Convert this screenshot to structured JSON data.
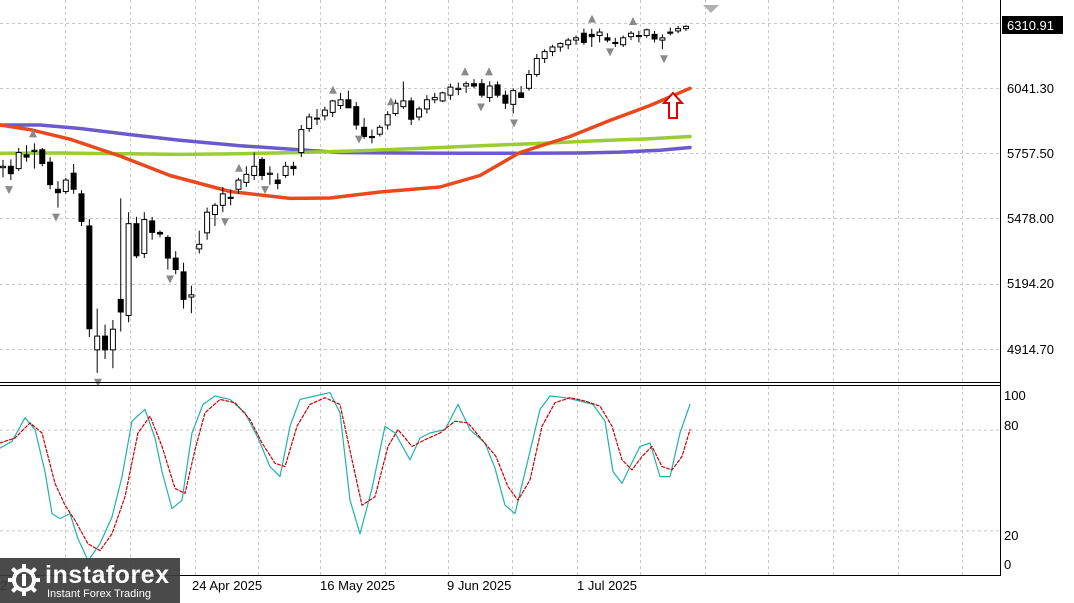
{
  "chart_data": [
    {
      "type": "candlestick",
      "price_axis": {
        "ticks": [
          "6041.30",
          "5757.50",
          "5478.00",
          "5194.20",
          "4914.70"
        ],
        "tick_values": [
          6041.3,
          5757.5,
          5478.0,
          5194.2,
          4914.7
        ],
        "ylim": [
          4770,
          6400
        ],
        "current_price": "6310.91"
      },
      "candles": [
        [
          5694,
          5728,
          5652,
          5700
        ],
        [
          5700,
          5730,
          5640,
          5668
        ],
        [
          5690,
          5780,
          5680,
          5760
        ],
        [
          5750,
          5792,
          5720,
          5740
        ],
        [
          5765,
          5800,
          5690,
          5770
        ],
        [
          5772,
          5780,
          5700,
          5712
        ],
        [
          5718,
          5740,
          5600,
          5620
        ],
        [
          5600,
          5635,
          5520,
          5585
        ],
        [
          5590,
          5650,
          5580,
          5640
        ],
        [
          5670,
          5710,
          5580,
          5600
        ],
        [
          5580,
          5596,
          5440,
          5460
        ],
        [
          5440,
          5470,
          4956,
          4992
        ],
        [
          4900,
          5080,
          4800,
          4960
        ],
        [
          4960,
          5010,
          4860,
          4900
        ],
        [
          4900,
          5030,
          4820,
          4990
        ],
        [
          5120,
          5560,
          4980,
          5065
        ],
        [
          5050,
          5500,
          5020,
          5450
        ],
        [
          5450,
          5480,
          5300,
          5310
        ],
        [
          5320,
          5500,
          5300,
          5468
        ],
        [
          5462,
          5480,
          5380,
          5412
        ],
        [
          5412,
          5420,
          5390,
          5405
        ],
        [
          5390,
          5400,
          5250,
          5300
        ],
        [
          5300,
          5330,
          5230,
          5250
        ],
        [
          5240,
          5280,
          5080,
          5120
        ],
        [
          5130,
          5180,
          5060,
          5140
        ],
        [
          5340,
          5420,
          5320,
          5360
        ],
        [
          5410,
          5520,
          5380,
          5500
        ],
        [
          5490,
          5540,
          5440,
          5530
        ],
        [
          5530,
          5610,
          5500,
          5580
        ],
        [
          5565,
          5600,
          5530,
          5560
        ],
        [
          5600,
          5650,
          5580,
          5640
        ],
        [
          5630,
          5700,
          5610,
          5665
        ],
        [
          5660,
          5760,
          5640,
          5700
        ],
        [
          5730,
          5740,
          5640,
          5660
        ],
        [
          5665,
          5700,
          5620,
          5670
        ],
        [
          5640,
          5670,
          5600,
          5625
        ],
        [
          5660,
          5720,
          5650,
          5700
        ],
        [
          5700,
          5720,
          5660,
          5690
        ],
        [
          5760,
          5880,
          5740,
          5860
        ],
        [
          5865,
          5930,
          5850,
          5915
        ],
        [
          5910,
          5950,
          5880,
          5908
        ],
        [
          5920,
          5960,
          5900,
          5945
        ],
        [
          5935,
          5990,
          5915,
          5985
        ],
        [
          5965,
          6020,
          5950,
          5990
        ],
        [
          5990,
          6030,
          5960,
          5955
        ],
        [
          5960,
          5980,
          5860,
          5880
        ],
        [
          5870,
          5910,
          5820,
          5830
        ],
        [
          5830,
          5860,
          5800,
          5825
        ],
        [
          5840,
          5880,
          5830,
          5870
        ],
        [
          5880,
          5940,
          5860,
          5925
        ],
        [
          5930,
          5990,
          5920,
          5975
        ],
        [
          5960,
          6070,
          5950,
          5985
        ],
        [
          5985,
          6000,
          5880,
          5905
        ],
        [
          5915,
          5960,
          5900,
          5950
        ],
        [
          5950,
          6010,
          5930,
          5990
        ],
        [
          5990,
          6020,
          5975,
          6000
        ],
        [
          5985,
          6025,
          5980,
          6020
        ],
        [
          6010,
          6060,
          5990,
          6045
        ],
        [
          6035,
          6065,
          6010,
          6040
        ],
        [
          6050,
          6070,
          6020,
          6060
        ],
        [
          6060,
          6080,
          6040,
          6050
        ],
        [
          6060,
          6080,
          6000,
          6010
        ],
        [
          6000,
          6070,
          5980,
          6050
        ],
        [
          6055,
          6070,
          6000,
          6010
        ],
        [
          6010,
          6030,
          5950,
          5975
        ],
        [
          5970,
          6040,
          5930,
          6030
        ],
        [
          6020,
          6050,
          6000,
          6000
        ],
        [
          6040,
          6120,
          6030,
          6100
        ],
        [
          6100,
          6190,
          6090,
          6170
        ],
        [
          6170,
          6210,
          6150,
          6200
        ],
        [
          6200,
          6230,
          6180,
          6220
        ],
        [
          6220,
          6240,
          6200,
          6235
        ],
        [
          6230,
          6260,
          6210,
          6250
        ],
        [
          6250,
          6270,
          6230,
          6260
        ],
        [
          6280,
          6300,
          6230,
          6240
        ],
        [
          6275,
          6300,
          6220,
          6265
        ],
        [
          6270,
          6300,
          6240,
          6285
        ],
        [
          6260,
          6280,
          6240,
          6250
        ],
        [
          6240,
          6260,
          6220,
          6235
        ],
        [
          6230,
          6270,
          6220,
          6260
        ],
        [
          6265,
          6290,
          6250,
          6280
        ],
        [
          6270,
          6290,
          6240,
          6268
        ],
        [
          6270,
          6300,
          6260,
          6295
        ],
        [
          6275,
          6290,
          6240,
          6255
        ],
        [
          6250,
          6275,
          6210,
          6260
        ],
        [
          6285,
          6305,
          6270,
          6280
        ],
        [
          6290,
          6312,
          6280,
          6300
        ],
        [
          6300,
          6315,
          6290,
          6310
        ]
      ],
      "fractals_up": [
        33,
        239,
        333,
        391,
        465,
        489,
        592,
        633
      ],
      "fractals_down": [
        9,
        56,
        98,
        170,
        225,
        265,
        359,
        481,
        514,
        610,
        664
      ],
      "ma_red": [
        [
          0,
          5880
        ],
        [
          30,
          5860
        ],
        [
          70,
          5818
        ],
        [
          120,
          5745
        ],
        [
          170,
          5660
        ],
        [
          230,
          5590
        ],
        [
          290,
          5560
        ],
        [
          330,
          5562
        ],
        [
          380,
          5588
        ],
        [
          440,
          5610
        ],
        [
          480,
          5660
        ],
        [
          520,
          5760
        ],
        [
          570,
          5830
        ],
        [
          610,
          5900
        ],
        [
          650,
          5965
        ],
        [
          690,
          6040
        ]
      ],
      "ma_blue": [
        [
          0,
          5880
        ],
        [
          40,
          5880
        ],
        [
          80,
          5865
        ],
        [
          130,
          5838
        ],
        [
          180,
          5814
        ],
        [
          240,
          5790
        ],
        [
          290,
          5775
        ],
        [
          340,
          5760
        ],
        [
          400,
          5758
        ],
        [
          460,
          5757
        ],
        [
          520,
          5757
        ],
        [
          580,
          5758
        ],
        [
          620,
          5762
        ],
        [
          660,
          5770
        ],
        [
          690,
          5782
        ]
      ],
      "ma_green": [
        [
          0,
          5757
        ],
        [
          60,
          5758
        ],
        [
          120,
          5755
        ],
        [
          180,
          5752
        ],
        [
          240,
          5755
        ],
        [
          300,
          5760
        ],
        [
          360,
          5768
        ],
        [
          420,
          5778
        ],
        [
          480,
          5790
        ],
        [
          540,
          5800
        ],
        [
          600,
          5812
        ],
        [
          650,
          5820
        ],
        [
          690,
          5830
        ]
      ],
      "signal_arrow": "up"
    },
    {
      "type": "line",
      "indicator": "stochastic",
      "yticks": [
        "100",
        "80",
        "20",
        "0"
      ],
      "ytick_values": [
        100,
        80,
        20,
        0
      ],
      "ylim": [
        0,
        100
      ],
      "main_line": [
        [
          0,
          69
        ],
        [
          12,
          73
        ],
        [
          25,
          87
        ],
        [
          35,
          80
        ],
        [
          45,
          55
        ],
        [
          52,
          30
        ],
        [
          60,
          27
        ],
        [
          70,
          30
        ],
        [
          78,
          15
        ],
        [
          88,
          2
        ],
        [
          100,
          12
        ],
        [
          112,
          28
        ],
        [
          122,
          52
        ],
        [
          132,
          85
        ],
        [
          145,
          92
        ],
        [
          155,
          75
        ],
        [
          162,
          55
        ],
        [
          172,
          33
        ],
        [
          182,
          38
        ],
        [
          192,
          78
        ],
        [
          203,
          95
        ],
        [
          215,
          100
        ],
        [
          230,
          98
        ],
        [
          245,
          90
        ],
        [
          258,
          75
        ],
        [
          270,
          58
        ],
        [
          280,
          52
        ],
        [
          290,
          82
        ],
        [
          300,
          98
        ],
        [
          315,
          100
        ],
        [
          330,
          102
        ],
        [
          340,
          90
        ],
        [
          350,
          38
        ],
        [
          360,
          18
        ],
        [
          372,
          45
        ],
        [
          385,
          82
        ],
        [
          395,
          78
        ],
        [
          410,
          62
        ],
        [
          420,
          75
        ],
        [
          430,
          78
        ],
        [
          445,
          80
        ],
        [
          458,
          95
        ],
        [
          470,
          80
        ],
        [
          485,
          72
        ],
        [
          495,
          57
        ],
        [
          505,
          35
        ],
        [
          515,
          30
        ],
        [
          528,
          62
        ],
        [
          540,
          92
        ],
        [
          550,
          100
        ],
        [
          565,
          99
        ],
        [
          580,
          97
        ],
        [
          593,
          95
        ],
        [
          605,
          85
        ],
        [
          613,
          55
        ],
        [
          622,
          48
        ],
        [
          630,
          58
        ],
        [
          640,
          70
        ],
        [
          650,
          72
        ],
        [
          660,
          52
        ],
        [
          670,
          52
        ],
        [
          680,
          78
        ],
        [
          690,
          95
        ]
      ],
      "signal_line": [
        [
          0,
          72
        ],
        [
          15,
          75
        ],
        [
          30,
          84
        ],
        [
          42,
          78
        ],
        [
          55,
          48
        ],
        [
          65,
          35
        ],
        [
          75,
          26
        ],
        [
          88,
          12
        ],
        [
          100,
          8
        ],
        [
          112,
          18
        ],
        [
          125,
          40
        ],
        [
          138,
          78
        ],
        [
          150,
          88
        ],
        [
          162,
          70
        ],
        [
          175,
          45
        ],
        [
          185,
          42
        ],
        [
          195,
          68
        ],
        [
          205,
          90
        ],
        [
          220,
          98
        ],
        [
          235,
          96
        ],
        [
          250,
          86
        ],
        [
          262,
          72
        ],
        [
          275,
          60
        ],
        [
          285,
          58
        ],
        [
          297,
          82
        ],
        [
          310,
          95
        ],
        [
          325,
          99
        ],
        [
          340,
          95
        ],
        [
          352,
          62
        ],
        [
          362,
          35
        ],
        [
          375,
          40
        ],
        [
          388,
          70
        ],
        [
          398,
          80
        ],
        [
          412,
          70
        ],
        [
          425,
          74
        ],
        [
          440,
          78
        ],
        [
          455,
          85
        ],
        [
          468,
          84
        ],
        [
          482,
          74
        ],
        [
          496,
          64
        ],
        [
          508,
          46
        ],
        [
          518,
          38
        ],
        [
          530,
          50
        ],
        [
          542,
          82
        ],
        [
          555,
          96
        ],
        [
          570,
          99
        ],
        [
          585,
          97
        ],
        [
          600,
          94
        ],
        [
          612,
          82
        ],
        [
          622,
          62
        ],
        [
          632,
          56
        ],
        [
          642,
          64
        ],
        [
          652,
          70
        ],
        [
          662,
          58
        ],
        [
          672,
          56
        ],
        [
          682,
          64
        ],
        [
          690,
          80
        ]
      ]
    }
  ],
  "date_labels": [
    "24 Apr 2025",
    "16 May 2025",
    "9 Jun 2025",
    "1 Jul 2025"
  ],
  "partial_date_label": "2",
  "logo": {
    "name": "instaforex",
    "tagline": "Instant Forex Trading"
  },
  "colors": {
    "ma_red": "#e8491d",
    "ma_blue": "#6a5acd",
    "ma_green": "#9acd32",
    "stoch_main": "#20b2aa",
    "stoch_signal": "#cc0000",
    "grid": "#c8c8c8",
    "fractal": "#8a8a8a",
    "arrow": "#e00000"
  }
}
